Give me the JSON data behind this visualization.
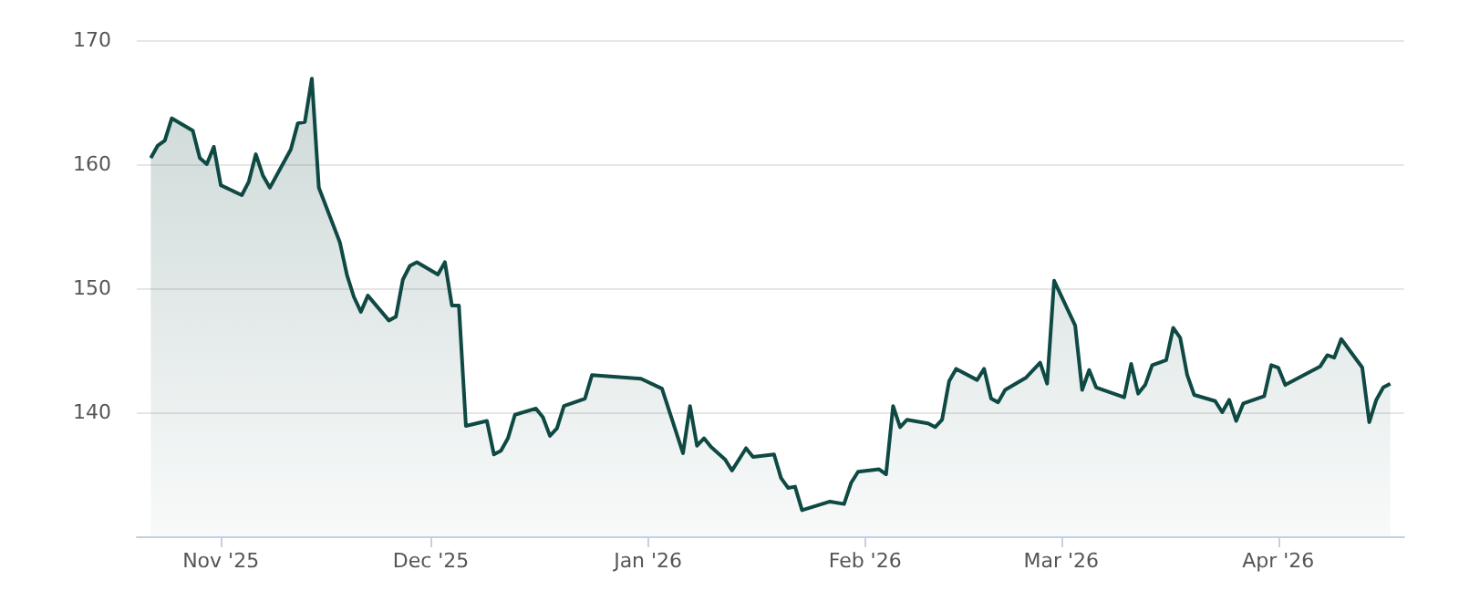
{
  "chart_data": {
    "type": "area",
    "x": [
      "2025-10-22",
      "2025-10-23",
      "2025-10-24",
      "2025-10-25",
      "2025-10-28",
      "2025-10-29",
      "2025-10-30",
      "2025-10-31",
      "2025-11-01",
      "2025-11-04",
      "2025-11-05",
      "2025-11-06",
      "2025-11-07",
      "2025-11-08",
      "2025-11-11",
      "2025-11-12",
      "2025-11-13",
      "2025-11-14",
      "2025-11-15",
      "2025-11-18",
      "2025-11-19",
      "2025-11-20",
      "2025-11-21",
      "2025-11-22",
      "2025-11-25",
      "2025-11-26",
      "2025-11-27",
      "2025-11-28",
      "2025-11-29",
      "2025-12-02",
      "2025-12-03",
      "2025-12-04",
      "2025-12-05",
      "2025-12-06",
      "2025-12-09",
      "2025-12-10",
      "2025-12-11",
      "2025-12-12",
      "2025-12-13",
      "2025-12-16",
      "2025-12-17",
      "2025-12-18",
      "2025-12-19",
      "2025-12-20",
      "2025-12-23",
      "2025-12-24",
      "2025-12-31",
      "2026-01-03",
      "2026-01-06",
      "2026-01-07",
      "2026-01-08",
      "2026-01-09",
      "2026-01-10",
      "2026-01-12",
      "2026-01-13",
      "2026-01-15",
      "2026-01-16",
      "2026-01-19",
      "2026-01-20",
      "2026-01-21",
      "2026-01-22",
      "2026-01-23",
      "2026-01-27",
      "2026-01-29",
      "2026-01-30",
      "2026-01-31",
      "2026-02-03",
      "2026-02-04",
      "2026-02-05",
      "2026-02-06",
      "2026-02-07",
      "2026-02-10",
      "2026-02-11",
      "2026-02-12",
      "2026-02-13",
      "2026-02-14",
      "2026-02-17",
      "2026-02-18",
      "2026-02-19",
      "2026-02-20",
      "2026-02-21",
      "2026-02-24",
      "2026-02-26",
      "2026-02-27",
      "2026-02-28",
      "2026-03-03",
      "2026-03-04",
      "2026-03-05",
      "2026-03-06",
      "2026-03-10",
      "2026-03-11",
      "2026-03-12",
      "2026-03-13",
      "2026-03-14",
      "2026-03-16",
      "2026-03-17",
      "2026-03-18",
      "2026-03-19",
      "2026-03-20",
      "2026-03-23",
      "2026-03-24",
      "2026-03-25",
      "2026-03-26",
      "2026-03-27",
      "2026-03-30",
      "2026-03-31",
      "2026-04-01",
      "2026-04-02",
      "2026-04-07",
      "2026-04-08",
      "2026-04-09",
      "2026-04-10",
      "2026-04-13",
      "2026-04-14",
      "2026-04-15",
      "2026-04-16",
      "2026-04-17"
    ],
    "series": [
      {
        "color": "#0f4943",
        "values": [
          160.5,
          161.5,
          161.9,
          163.7,
          162.7,
          160.5,
          160.0,
          161.4,
          158.3,
          157.5,
          158.6,
          160.8,
          159.1,
          158.1,
          161.2,
          163.3,
          163.4,
          166.9,
          158.1,
          153.7,
          151.1,
          149.3,
          148.1,
          149.4,
          147.4,
          147.7,
          150.7,
          151.8,
          152.1,
          151.1,
          152.1,
          148.6,
          148.6,
          138.9,
          139.3,
          136.6,
          136.9,
          137.9,
          139.8,
          140.3,
          139.6,
          138.1,
          138.7,
          140.5,
          141.1,
          143.0,
          142.7,
          141.9,
          136.7,
          140.5,
          137.3,
          137.9,
          137.2,
          136.2,
          135.3,
          137.1,
          136.4,
          136.6,
          134.7,
          133.9,
          134.0,
          132.1,
          132.8,
          132.6,
          134.3,
          135.2,
          135.4,
          135.0,
          140.5,
          138.8,
          139.4,
          139.1,
          138.8,
          139.4,
          142.5,
          143.5,
          142.6,
          143.5,
          141.1,
          140.8,
          141.8,
          142.8,
          144.0,
          142.3,
          150.6,
          147.0,
          141.8,
          143.4,
          142.0,
          141.2,
          143.9,
          141.5,
          142.2,
          143.8,
          144.2,
          146.8,
          146.0,
          143.0,
          141.4,
          140.9,
          140.0,
          141.0,
          139.3,
          140.7,
          141.3,
          143.8,
          143.6,
          142.2,
          143.7,
          144.6,
          144.4,
          145.9,
          143.6,
          139.2,
          141.0,
          142.0,
          142.3
        ]
      }
    ],
    "xlim": [
      "2025-10-20",
      "2026-04-19"
    ],
    "xticks": [
      {
        "value": "2025-11-01",
        "label": "Nov '25"
      },
      {
        "value": "2025-12-01",
        "label": "Dec '25"
      },
      {
        "value": "2026-01-01",
        "label": "Jan '26"
      },
      {
        "value": "2026-02-01",
        "label": "Feb '26"
      },
      {
        "value": "2026-03-01",
        "label": "Mar '26"
      },
      {
        "value": "2026-04-01",
        "label": "Apr '26"
      }
    ],
    "ylim": [
      130,
      170
    ],
    "yticks": [
      {
        "value": 130,
        "label": null
      },
      140,
      150,
      160,
      170
    ],
    "grid": "y"
  }
}
